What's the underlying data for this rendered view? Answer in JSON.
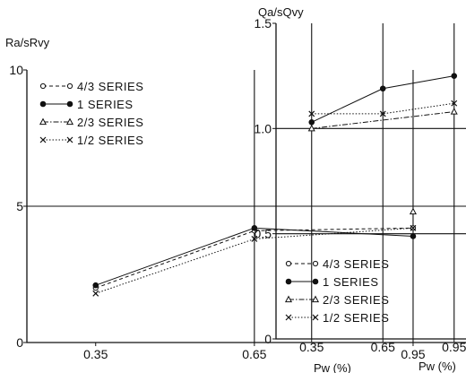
{
  "chart_data": [
    {
      "type": "line",
      "title": "",
      "ylabel": "Ra/sRvy",
      "xlabel": "Pw (%)",
      "categories": [
        "0.35",
        "0.65",
        "0.95"
      ],
      "xlim": [
        0.22,
        1.05
      ],
      "ylim": [
        0,
        10
      ],
      "yticks": [
        "0",
        "5",
        "10"
      ],
      "grid": "horizontal at 5 and vertical at 0.65, 0.95",
      "legend_position": "top-right",
      "series": [
        {
          "name": "4/3 SERIES",
          "marker": "open-circle",
          "line": "dash",
          "x": [
            0.35,
            0.65,
            0.95
          ],
          "values": [
            2.0,
            4.1,
            4.2
          ]
        },
        {
          "name": "1 SERIES",
          "marker": "filled-circle",
          "line": "solid",
          "x": [
            0.35,
            0.65,
            0.95
          ],
          "values": [
            2.1,
            4.2,
            3.9
          ]
        },
        {
          "name": "2/3 SERIES",
          "marker": "open-triangle",
          "line": "dash-dot",
          "x": [
            0.95
          ],
          "values": [
            4.8
          ]
        },
        {
          "name": "1/2 SERIES",
          "marker": "cross",
          "line": "dot",
          "x": [
            0.35,
            0.65,
            0.95
          ],
          "values": [
            1.8,
            3.8,
            4.2
          ]
        }
      ]
    },
    {
      "type": "line",
      "title": "",
      "ylabel": "Qa/sQvy",
      "xlabel": "Pw (%)",
      "categories": [
        "0.35",
        "0.65",
        "0.95"
      ],
      "xlim": [
        0.2,
        1.0
      ],
      "ylim": [
        0,
        1.5
      ],
      "yticks": [
        "0",
        "0.5",
        "1.0",
        "1.5"
      ],
      "grid": "horizontal at 0.5 and 1.0, vertical at 0.35, 0.65, 0.95",
      "legend_position": "bottom-right",
      "series": [
        {
          "name": "4/3 SERIES",
          "marker": "open-circle",
          "line": "dash",
          "x": [],
          "values": []
        },
        {
          "name": "1 SERIES",
          "marker": "filled-circle",
          "line": "solid",
          "x": [
            0.35,
            0.65,
            0.95
          ],
          "values": [
            1.03,
            1.19,
            1.25
          ]
        },
        {
          "name": "2/3 SERIES",
          "marker": "open-triangle",
          "line": "dash-dot",
          "x": [
            0.35,
            0.95
          ],
          "values": [
            1.0,
            1.08
          ]
        },
        {
          "name": "1/2 SERIES",
          "marker": "cross",
          "line": "dot",
          "x": [
            0.35,
            0.65,
            0.95
          ],
          "values": [
            1.07,
            1.07,
            1.12
          ]
        }
      ]
    }
  ]
}
